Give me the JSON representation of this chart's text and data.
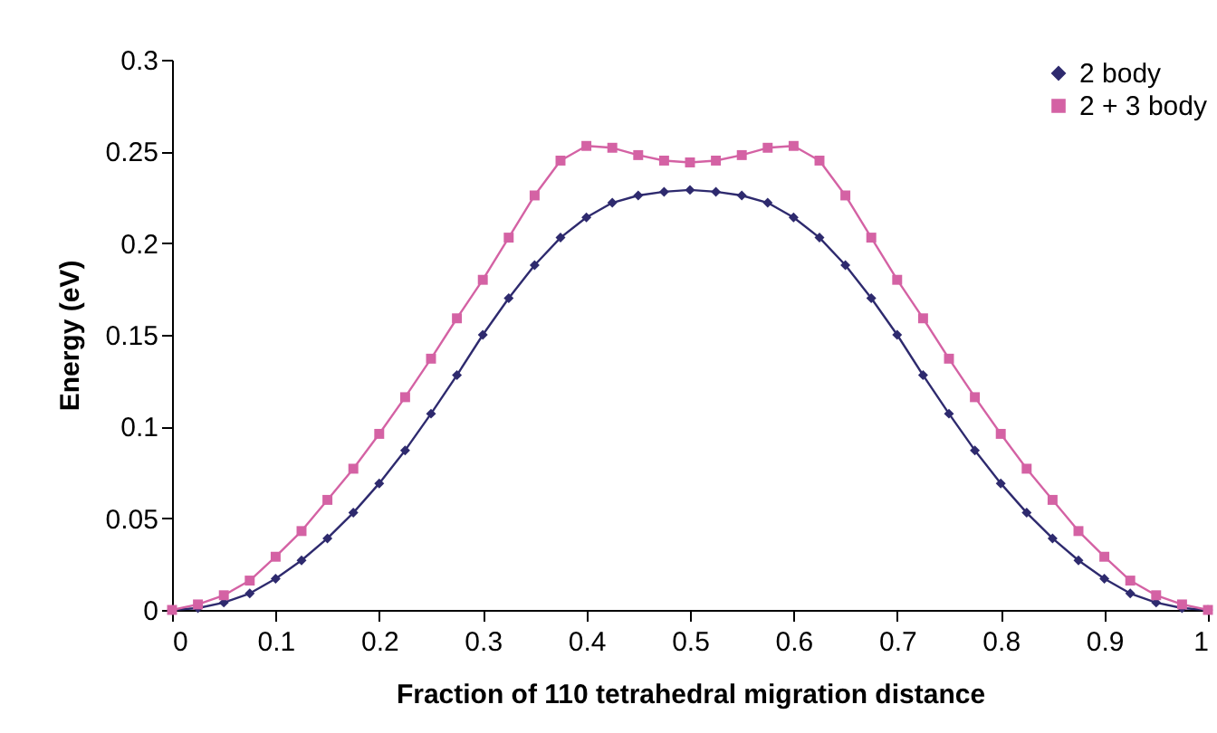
{
  "chart_data": {
    "type": "line",
    "xlabel": "Fraction of 110 tetrahedral migration distance",
    "ylabel": "Energy (eV)",
    "x": [
      0,
      0.025,
      0.05,
      0.075,
      0.1,
      0.125,
      0.15,
      0.175,
      0.2,
      0.225,
      0.25,
      0.275,
      0.3,
      0.325,
      0.35,
      0.375,
      0.4,
      0.425,
      0.45,
      0.475,
      0.5,
      0.525,
      0.55,
      0.575,
      0.6,
      0.625,
      0.65,
      0.675,
      0.7,
      0.725,
      0.75,
      0.775,
      0.8,
      0.825,
      0.85,
      0.875,
      0.9,
      0.925,
      0.95,
      0.975,
      1
    ],
    "series": [
      {
        "name": "2 body",
        "color": "#2e2a6e",
        "marker": "diamond",
        "values": [
          0,
          0.001,
          0.004,
          0.009,
          0.017,
          0.027,
          0.039,
          0.053,
          0.069,
          0.087,
          0.107,
          0.128,
          0.15,
          0.17,
          0.188,
          0.203,
          0.214,
          0.222,
          0.226,
          0.228,
          0.229,
          0.228,
          0.226,
          0.222,
          0.214,
          0.203,
          0.188,
          0.17,
          0.15,
          0.128,
          0.107,
          0.087,
          0.069,
          0.053,
          0.039,
          0.027,
          0.017,
          0.009,
          0.004,
          0.001,
          0
        ]
      },
      {
        "name": "2 + 3 body",
        "color": "#d462a4",
        "marker": "square",
        "values": [
          0,
          0.003,
          0.008,
          0.016,
          0.029,
          0.043,
          0.06,
          0.077,
          0.096,
          0.116,
          0.137,
          0.159,
          0.18,
          0.203,
          0.226,
          0.245,
          0.253,
          0.252,
          0.248,
          0.245,
          0.244,
          0.245,
          0.248,
          0.252,
          0.253,
          0.245,
          0.226,
          0.203,
          0.18,
          0.159,
          0.137,
          0.116,
          0.096,
          0.077,
          0.06,
          0.043,
          0.029,
          0.016,
          0.008,
          0.003,
          0
        ]
      }
    ],
    "xlim": [
      0,
      1
    ],
    "xticks": [
      0,
      0.1,
      0.2,
      0.3,
      0.4,
      0.5,
      0.6,
      0.7,
      0.8,
      0.9,
      1
    ],
    "ylim": [
      0,
      0.3
    ],
    "yticks": [
      0,
      0.05,
      0.1,
      0.15,
      0.2,
      0.25,
      0.3
    ],
    "grid": false,
    "legend": "top right",
    "line_style": "solid"
  }
}
